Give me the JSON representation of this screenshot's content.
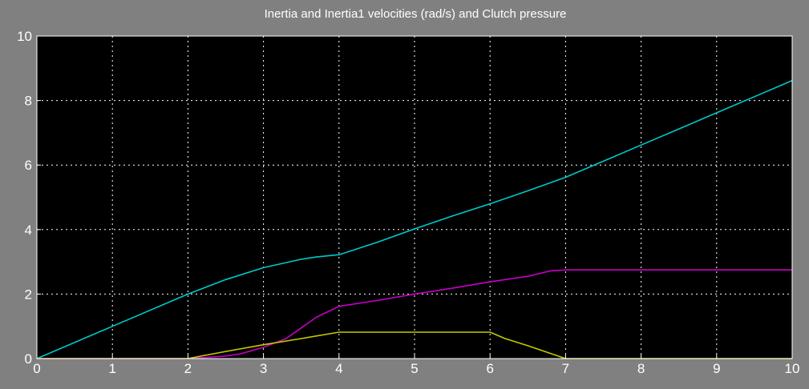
{
  "chart_data": {
    "type": "line",
    "title": "Inertia and Inertia1  velocities (rad/s) and Clutch pressure",
    "xlabel": "",
    "ylabel": "",
    "xlim": [
      0,
      10
    ],
    "ylim": [
      0,
      10
    ],
    "x_ticks": [
      0,
      1,
      2,
      3,
      4,
      5,
      6,
      7,
      8,
      9,
      10
    ],
    "y_ticks": [
      0,
      2,
      4,
      6,
      8,
      10
    ],
    "grid": true,
    "background": "#000000",
    "series": [
      {
        "color": "#00c8c8",
        "x": [
          0,
          1,
          2,
          2.5,
          3,
          3.5,
          3.7,
          4,
          4.5,
          5,
          5.5,
          6,
          6.5,
          7,
          7.5,
          8,
          8.5,
          9,
          9.5,
          10
        ],
        "y": [
          0,
          1.0,
          2.0,
          2.45,
          2.82,
          3.08,
          3.15,
          3.22,
          3.6,
          4.02,
          4.42,
          4.8,
          5.2,
          5.62,
          6.12,
          6.62,
          7.12,
          7.62,
          8.12,
          8.62
        ]
      },
      {
        "color": "#c800c8",
        "x": [
          0,
          2.0,
          2.2,
          2.5,
          2.7,
          3.0,
          3.3,
          3.5,
          3.7,
          4.0,
          4.5,
          5.0,
          5.5,
          6.0,
          6.5,
          6.8,
          7.0,
          8,
          9,
          10
        ],
        "y": [
          0,
          0,
          0.03,
          0.08,
          0.15,
          0.35,
          0.62,
          0.95,
          1.28,
          1.62,
          1.8,
          2.0,
          2.18,
          2.38,
          2.55,
          2.72,
          2.75,
          2.75,
          2.75,
          2.75
        ]
      },
      {
        "color": "#c8c800",
        "x": [
          0,
          2.0,
          2.5,
          3.0,
          3.5,
          4.0,
          4.5,
          5.0,
          5.5,
          6.0,
          6.2,
          6.5,
          7.0,
          8,
          9,
          10
        ],
        "y": [
          0,
          0,
          0.22,
          0.43,
          0.62,
          0.82,
          0.82,
          0.82,
          0.82,
          0.82,
          0.62,
          0.4,
          0,
          0,
          0,
          0
        ]
      }
    ]
  }
}
